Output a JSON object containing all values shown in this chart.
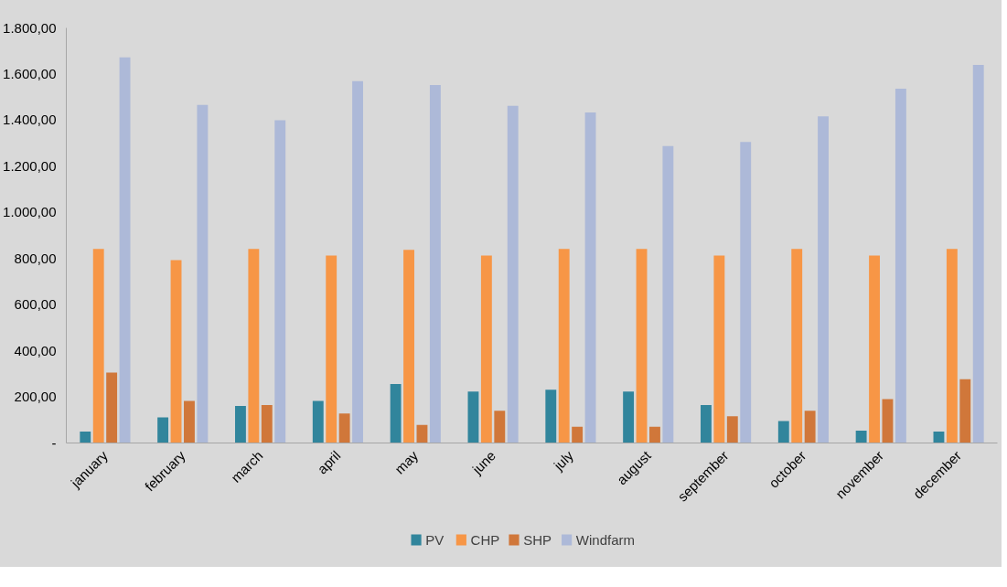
{
  "chart_data": {
    "type": "bar",
    "categories": [
      "january",
      "february",
      "march",
      "april",
      "may",
      "june",
      "july",
      "august",
      "september",
      "october",
      "november",
      "december"
    ],
    "series": [
      {
        "name": "PV",
        "color": "#31859c",
        "values": [
          50,
          111,
          161,
          182,
          256,
          223,
          231,
          223,
          165,
          95,
          54,
          50
        ]
      },
      {
        "name": "CHP",
        "color": "#f79646",
        "values": [
          842,
          793,
          842,
          813,
          838,
          813,
          842,
          842,
          813,
          842,
          813,
          842
        ]
      },
      {
        "name": "SHP",
        "color": "#d0773a",
        "values": [
          305,
          182,
          165,
          128,
          78,
          140,
          70,
          70,
          116,
          140,
          190,
          277
        ]
      },
      {
        "name": "Windfarm",
        "color": "#adb9d8",
        "values": [
          1672,
          1466,
          1400,
          1569,
          1552,
          1462,
          1433,
          1288,
          1305,
          1416,
          1536,
          1639
        ]
      }
    ],
    "ylim": [
      0,
      1800
    ],
    "yticks": [
      {
        "value": 0,
        "label": "-"
      },
      {
        "value": 200,
        "label": "200,00"
      },
      {
        "value": 400,
        "label": "400,00"
      },
      {
        "value": 600,
        "label": "600,00"
      },
      {
        "value": 800,
        "label": "800,00"
      },
      {
        "value": 1000,
        "label": "1.000,00"
      },
      {
        "value": 1200,
        "label": "1.200,00"
      },
      {
        "value": 1400,
        "label": "1.400,00"
      },
      {
        "value": 1600,
        "label": "1.600,00"
      },
      {
        "value": 1800,
        "label": "1.800,00"
      }
    ],
    "grid": false,
    "legend": "bottom"
  }
}
